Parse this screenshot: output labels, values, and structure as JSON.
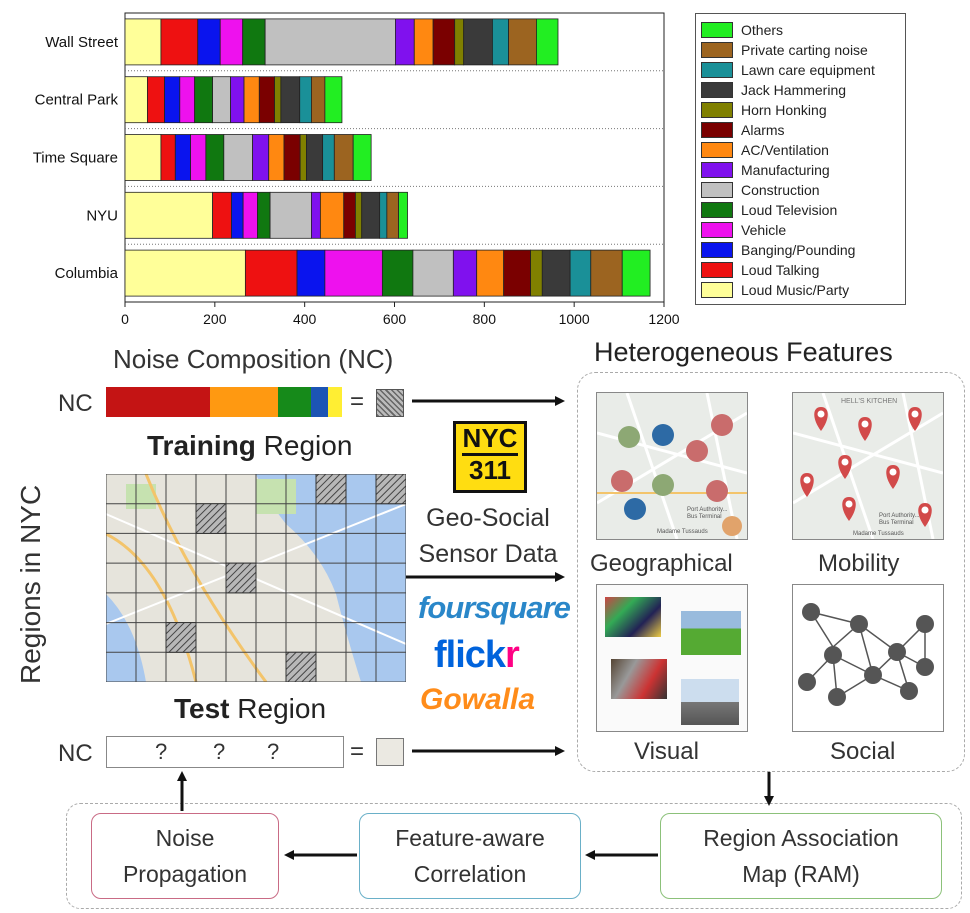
{
  "chart_data": {
    "type": "bar",
    "stacked": true,
    "orientation": "horizontal",
    "categories": [
      "Wall Street",
      "Central Park",
      "Time Square",
      "NYU",
      "Columbia"
    ],
    "xlim": [
      0,
      1200
    ],
    "xticks": [
      0,
      200,
      400,
      600,
      800,
      1000,
      1200
    ],
    "legend_position": "right",
    "series": [
      {
        "name": "Loud Music/Party",
        "color": "#ffff99",
        "values": [
          80,
          50,
          80,
          195,
          268
        ]
      },
      {
        "name": "Loud Talking",
        "color": "#ee1111",
        "values": [
          82,
          38,
          32,
          42,
          115
        ]
      },
      {
        "name": "Banging/Pounding",
        "color": "#0a14ee",
        "values": [
          50,
          34,
          34,
          26,
          62
        ]
      },
      {
        "name": "Vehicle",
        "color": "#ee11ee",
        "values": [
          50,
          33,
          34,
          32,
          128
        ]
      },
      {
        "name": "Loud Television",
        "color": "#107810",
        "values": [
          50,
          40,
          40,
          28,
          68
        ]
      },
      {
        "name": "Construction",
        "color": "#c0c0c0",
        "values": [
          290,
          40,
          64,
          92,
          90
        ]
      },
      {
        "name": "Manufacturing",
        "color": "#8011ee",
        "values": [
          42,
          30,
          36,
          20,
          52
        ]
      },
      {
        "name": "AC/Ventilation",
        "color": "#ff8811",
        "values": [
          42,
          34,
          34,
          52,
          60
        ]
      },
      {
        "name": "Alarms",
        "color": "#7a0000",
        "values": [
          48,
          34,
          36,
          26,
          60
        ]
      },
      {
        "name": "Horn Honking",
        "color": "#808000",
        "values": [
          20,
          14,
          14,
          14,
          26
        ]
      },
      {
        "name": "Jack Hammering",
        "color": "#3a3a3a",
        "values": [
          64,
          42,
          36,
          40,
          62
        ]
      },
      {
        "name": "Lawn care equipment",
        "color": "#1a9098",
        "values": [
          36,
          26,
          26,
          16,
          46
        ]
      },
      {
        "name": "Private carting noise",
        "color": "#9c6420",
        "values": [
          62,
          30,
          42,
          26,
          70
        ]
      },
      {
        "name": "Others",
        "color": "#22ee22",
        "values": [
          48,
          38,
          40,
          20,
          62
        ]
      }
    ]
  },
  "diagram": {
    "nc_title": "Noise Composition (NC)",
    "nc_label": "NC",
    "nc_label_test": "NC",
    "equals": "=",
    "equals_test": "=",
    "training_bold": "Training",
    "training_rest": " Region",
    "test_bold": "Test",
    "test_rest": " Region",
    "regions_label": "Regions in NYC",
    "question_marks": [
      "?",
      "?",
      "?"
    ],
    "nyc311_line1": "NYC",
    "nyc311_line2": "311",
    "geo_social_line1": "Geo-Social",
    "geo_social_line2": "Sensor Data",
    "brand_foursquare": "foursquare",
    "brand_flickr_a": "flick",
    "brand_flickr_b": "r",
    "brand_gowalla": "Gowalla",
    "hetero_title": "Heterogeneous Features",
    "feat_geographical": "Geographical",
    "feat_mobility": "Mobility",
    "feat_visual": "Visual",
    "feat_social": "Social",
    "map_text_1": "Port Authority...",
    "map_text_2": "Bus Terminal",
    "map_text_3": "Madame Tussauds",
    "map_text_4": "HELL'S KITCHEN",
    "map_text_5": "Port Authority...",
    "map_text_6": "Bus Terminal",
    "map_text_7": "Madame Tussauds",
    "box_noise_line1": "Noise",
    "box_noise_line2": "Propagation",
    "box_corr_line1": "Feature-aware",
    "box_corr_line2": "Correlation",
    "box_ram_line1": "Region Association",
    "box_ram_line2": "Map (RAM)",
    "nc_colors": [
      "#c41414",
      "#ff9911",
      "#168a1a",
      "#1c54b4",
      "#ffee33"
    ],
    "nc_fractions": [
      0.44,
      0.29,
      0.14,
      0.07,
      0.06
    ]
  }
}
